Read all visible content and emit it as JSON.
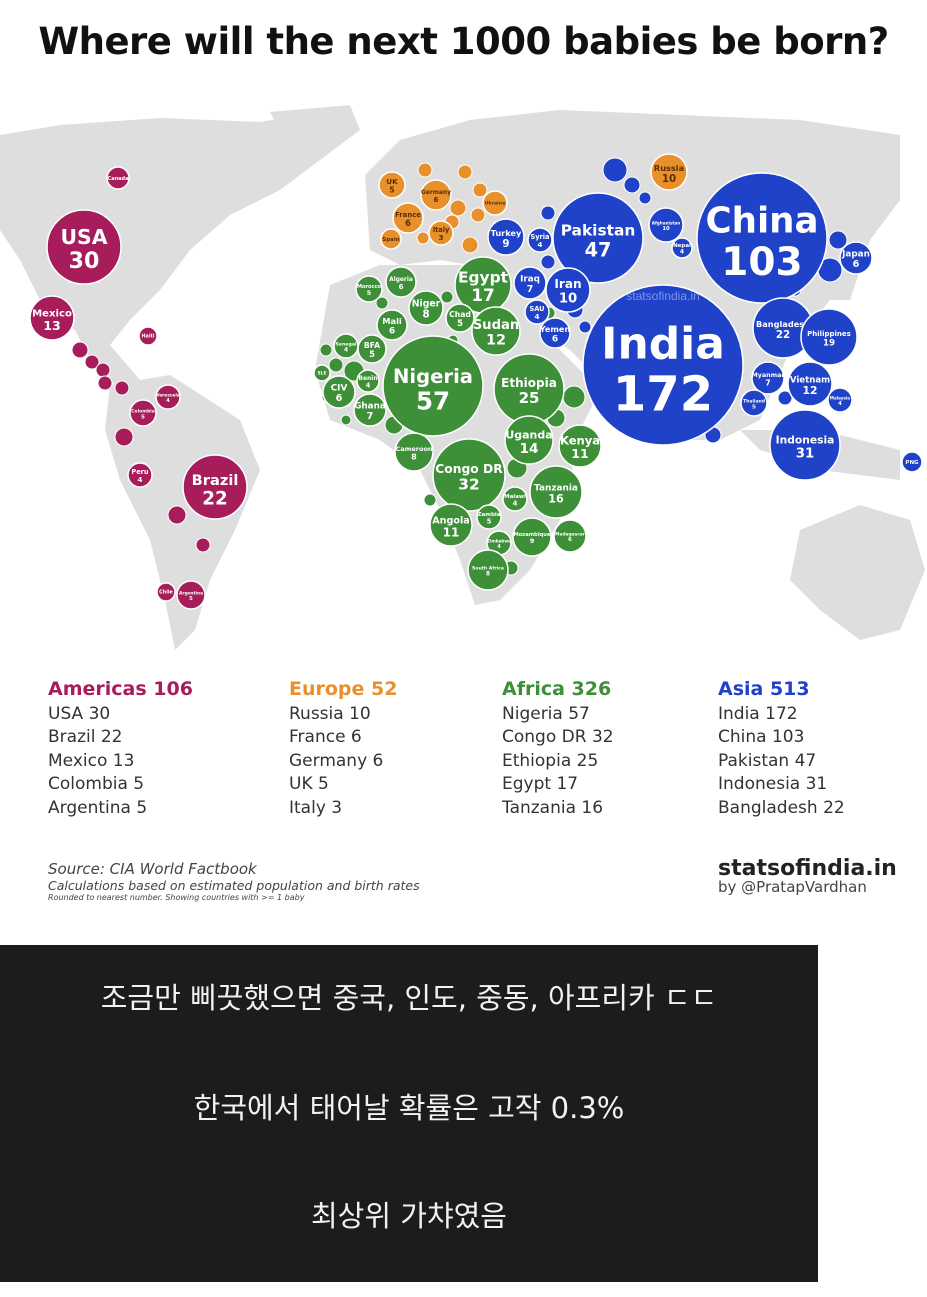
{
  "title": "Where will the next 1000 babies be born?",
  "watermark": "statsofindia.in",
  "colors": {
    "Americas": "#a71c5b",
    "Europe": "#e8912c",
    "Africa": "#3d8f38",
    "Asia": "#1f42c8",
    "land": "#dedede"
  },
  "map": {
    "bubbles": [
      {
        "name": "USA",
        "value": "30",
        "region": "Americas"
      },
      {
        "name": "Mexico",
        "value": "13",
        "region": "Americas"
      },
      {
        "name": "Brazil",
        "value": "22",
        "region": "Americas"
      },
      {
        "name": "Peru",
        "value": "4",
        "region": "Americas"
      },
      {
        "name": "Colombia",
        "value": "5",
        "region": "Americas"
      },
      {
        "name": "Venezuela",
        "value": "4",
        "region": "Americas"
      },
      {
        "name": "Argentina",
        "value": "5",
        "region": "Americas"
      },
      {
        "name": "Canada",
        "value": "",
        "region": "Americas"
      },
      {
        "name": "Haiti",
        "value": "",
        "region": "Americas"
      },
      {
        "name": "Chile",
        "value": "",
        "region": "Americas"
      },
      {
        "name": "UK",
        "value": "5",
        "region": "Europe"
      },
      {
        "name": "Germany",
        "value": "6",
        "region": "Europe"
      },
      {
        "name": "France",
        "value": "6",
        "region": "Europe"
      },
      {
        "name": "Italy",
        "value": "3",
        "region": "Europe"
      },
      {
        "name": "Russia",
        "value": "10",
        "region": "Europe"
      },
      {
        "name": "Spain",
        "value": "",
        "region": "Europe"
      },
      {
        "name": "Ukraine",
        "value": "",
        "region": "Europe"
      },
      {
        "name": "Turkey",
        "value": "9",
        "region": "Asia"
      },
      {
        "name": "Syria",
        "value": "4",
        "region": "Asia"
      },
      {
        "name": "Pakistan",
        "value": "47",
        "region": "Asia"
      },
      {
        "name": "Afghanistan",
        "value": "10",
        "region": "Asia"
      },
      {
        "name": "Nepal",
        "value": "4",
        "region": "Asia"
      },
      {
        "name": "China",
        "value": "103",
        "region": "Asia"
      },
      {
        "name": "Iraq",
        "value": "7",
        "region": "Asia"
      },
      {
        "name": "Iran",
        "value": "10",
        "region": "Asia"
      },
      {
        "name": "SAU",
        "value": "4",
        "region": "Asia"
      },
      {
        "name": "Yemen",
        "value": "6",
        "region": "Asia"
      },
      {
        "name": "India",
        "value": "172",
        "region": "Asia"
      },
      {
        "name": "Bangladesh",
        "value": "22",
        "region": "Asia"
      },
      {
        "name": "Philippines",
        "value": "19",
        "region": "Asia"
      },
      {
        "name": "Myanmar",
        "value": "7",
        "region": "Asia"
      },
      {
        "name": "Vietnam",
        "value": "12",
        "region": "Asia"
      },
      {
        "name": "Thailand",
        "value": "5",
        "region": "Asia"
      },
      {
        "name": "Malaysia",
        "value": "4",
        "region": "Asia"
      },
      {
        "name": "Indonesia",
        "value": "31",
        "region": "Asia"
      },
      {
        "name": "Japan",
        "value": "6",
        "region": "Asia"
      },
      {
        "name": "PNG",
        "value": "",
        "region": "Asia"
      },
      {
        "name": "Egypt",
        "value": "17",
        "region": "Africa"
      },
      {
        "name": "Morocco",
        "value": "5",
        "region": "Africa"
      },
      {
        "name": "Algeria",
        "value": "6",
        "region": "Africa"
      },
      {
        "name": "Niger",
        "value": "8",
        "region": "Africa"
      },
      {
        "name": "Chad",
        "value": "5",
        "region": "Africa"
      },
      {
        "name": "Mali",
        "value": "6",
        "region": "Africa"
      },
      {
        "name": "Sudan",
        "value": "12",
        "region": "Africa"
      },
      {
        "name": "BFA",
        "value": "5",
        "region": "Africa"
      },
      {
        "name": "Nigeria",
        "value": "57",
        "region": "Africa"
      },
      {
        "name": "Ethiopia",
        "value": "25",
        "region": "Africa"
      },
      {
        "name": "CIV",
        "value": "6",
        "region": "Africa"
      },
      {
        "name": "Ghana",
        "value": "7",
        "region": "Africa"
      },
      {
        "name": "Benin",
        "value": "4",
        "region": "Africa"
      },
      {
        "name": "SLE",
        "value": "",
        "region": "Africa"
      },
      {
        "name": "Senegal",
        "value": "4",
        "region": "Africa"
      },
      {
        "name": "Cameroon",
        "value": "8",
        "region": "Africa"
      },
      {
        "name": "Congo DR",
        "value": "32",
        "region": "Africa"
      },
      {
        "name": "Uganda",
        "value": "14",
        "region": "Africa"
      },
      {
        "name": "Kenya",
        "value": "11",
        "region": "Africa"
      },
      {
        "name": "Tanzania",
        "value": "16",
        "region": "Africa"
      },
      {
        "name": "Malawi",
        "value": "4",
        "region": "Africa"
      },
      {
        "name": "Zambia",
        "value": "5",
        "region": "Africa"
      },
      {
        "name": "Angola",
        "value": "11",
        "region": "Africa"
      },
      {
        "name": "Mozambique",
        "value": "9",
        "region": "Africa"
      },
      {
        "name": "Madagascar",
        "value": "6",
        "region": "Africa"
      },
      {
        "name": "Zimbabwe",
        "value": "4",
        "region": "Africa"
      },
      {
        "name": "South Africa",
        "value": "8",
        "region": "Africa"
      }
    ]
  },
  "legend": {
    "americas": {
      "heading": "Americas 106",
      "items": [
        "USA 30",
        "Brazil 22",
        "Mexico 13",
        "Colombia 5",
        "Argentina 5"
      ]
    },
    "europe": {
      "heading": "Europe 52",
      "items": [
        "Russia 10",
        "France 6",
        "Germany 6",
        "UK 5",
        "Italy 3"
      ]
    },
    "africa": {
      "heading": "Africa 326",
      "items": [
        "Nigeria 57",
        "Congo DR 32",
        "Ethiopia 25",
        "Egypt 17",
        "Tanzania 16"
      ]
    },
    "asia": {
      "heading": "Asia 513",
      "items": [
        "India 172",
        "China 103",
        "Pakistan 47",
        "Indonesia 31",
        "Bangladesh 22"
      ]
    }
  },
  "source": {
    "line1": "Source: CIA World Factbook",
    "line2": "Calculations based on estimated population and birth rates",
    "line3": "Rounded to nearest number. Showing countries with >= 1 baby"
  },
  "brand": {
    "site": "statsofindia.in",
    "author": "by @PratapVardhan"
  },
  "caption": {
    "line1": "조금만 삐끗했으면 중국, 인도, 중동, 아프리카 ㄷㄷ",
    "line2": "한국에서 태어날 확률은 고작 0.3%",
    "line3": "최상위 가챠였음"
  }
}
